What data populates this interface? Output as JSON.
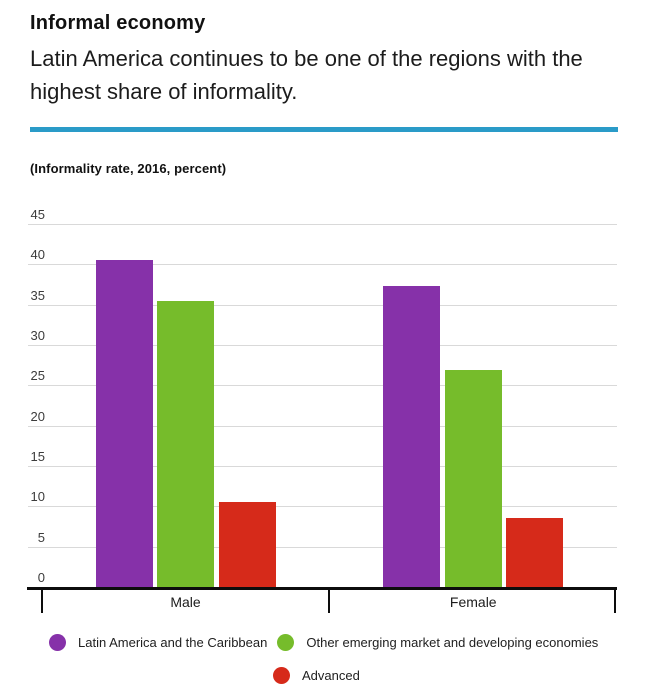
{
  "header": {
    "title": "Informal economy",
    "subtitle": "Latin America continues to be one of the regions with the highest share of informality."
  },
  "accent_colors": {
    "divider_blue": "#2A9BC8"
  },
  "chart_data": {
    "type": "bar",
    "title": "(Informality rate, 2016, percent)",
    "categories": [
      "Male",
      "Female"
    ],
    "series": [
      {
        "name": "Latin America and the Caribbean",
        "color": "#8631A9",
        "values": [
          40.5,
          37.3
        ]
      },
      {
        "name": "Other emerging market and developing economies",
        "color": "#76BC2B",
        "values": [
          35.4,
          26.9
        ]
      },
      {
        "name": "Advanced",
        "color": "#D62A1A",
        "values": [
          10.5,
          8.5
        ]
      }
    ],
    "ylim": [
      0,
      45
    ],
    "ytick_step": 5,
    "grid": true,
    "gridline_color": "#D9D9D9",
    "axis_color": "#0d0d0d",
    "legend_position": "bottom",
    "legend_marker": "circle"
  }
}
